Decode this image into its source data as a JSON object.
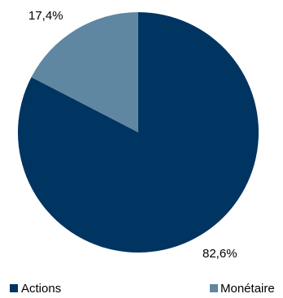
{
  "chart_data": {
    "type": "pie",
    "categories": [
      "Actions",
      "Monétaire"
    ],
    "values": [
      82.6,
      17.4
    ],
    "value_labels": [
      "82,6%",
      "17,4%"
    ],
    "colors": [
      "#003461",
      "#5f87a1"
    ],
    "start_angle": "12 o'clock",
    "direction": "clockwise",
    "legend": {
      "placement": "bottom",
      "entries": [
        "Actions",
        "Monétaire"
      ]
    }
  }
}
